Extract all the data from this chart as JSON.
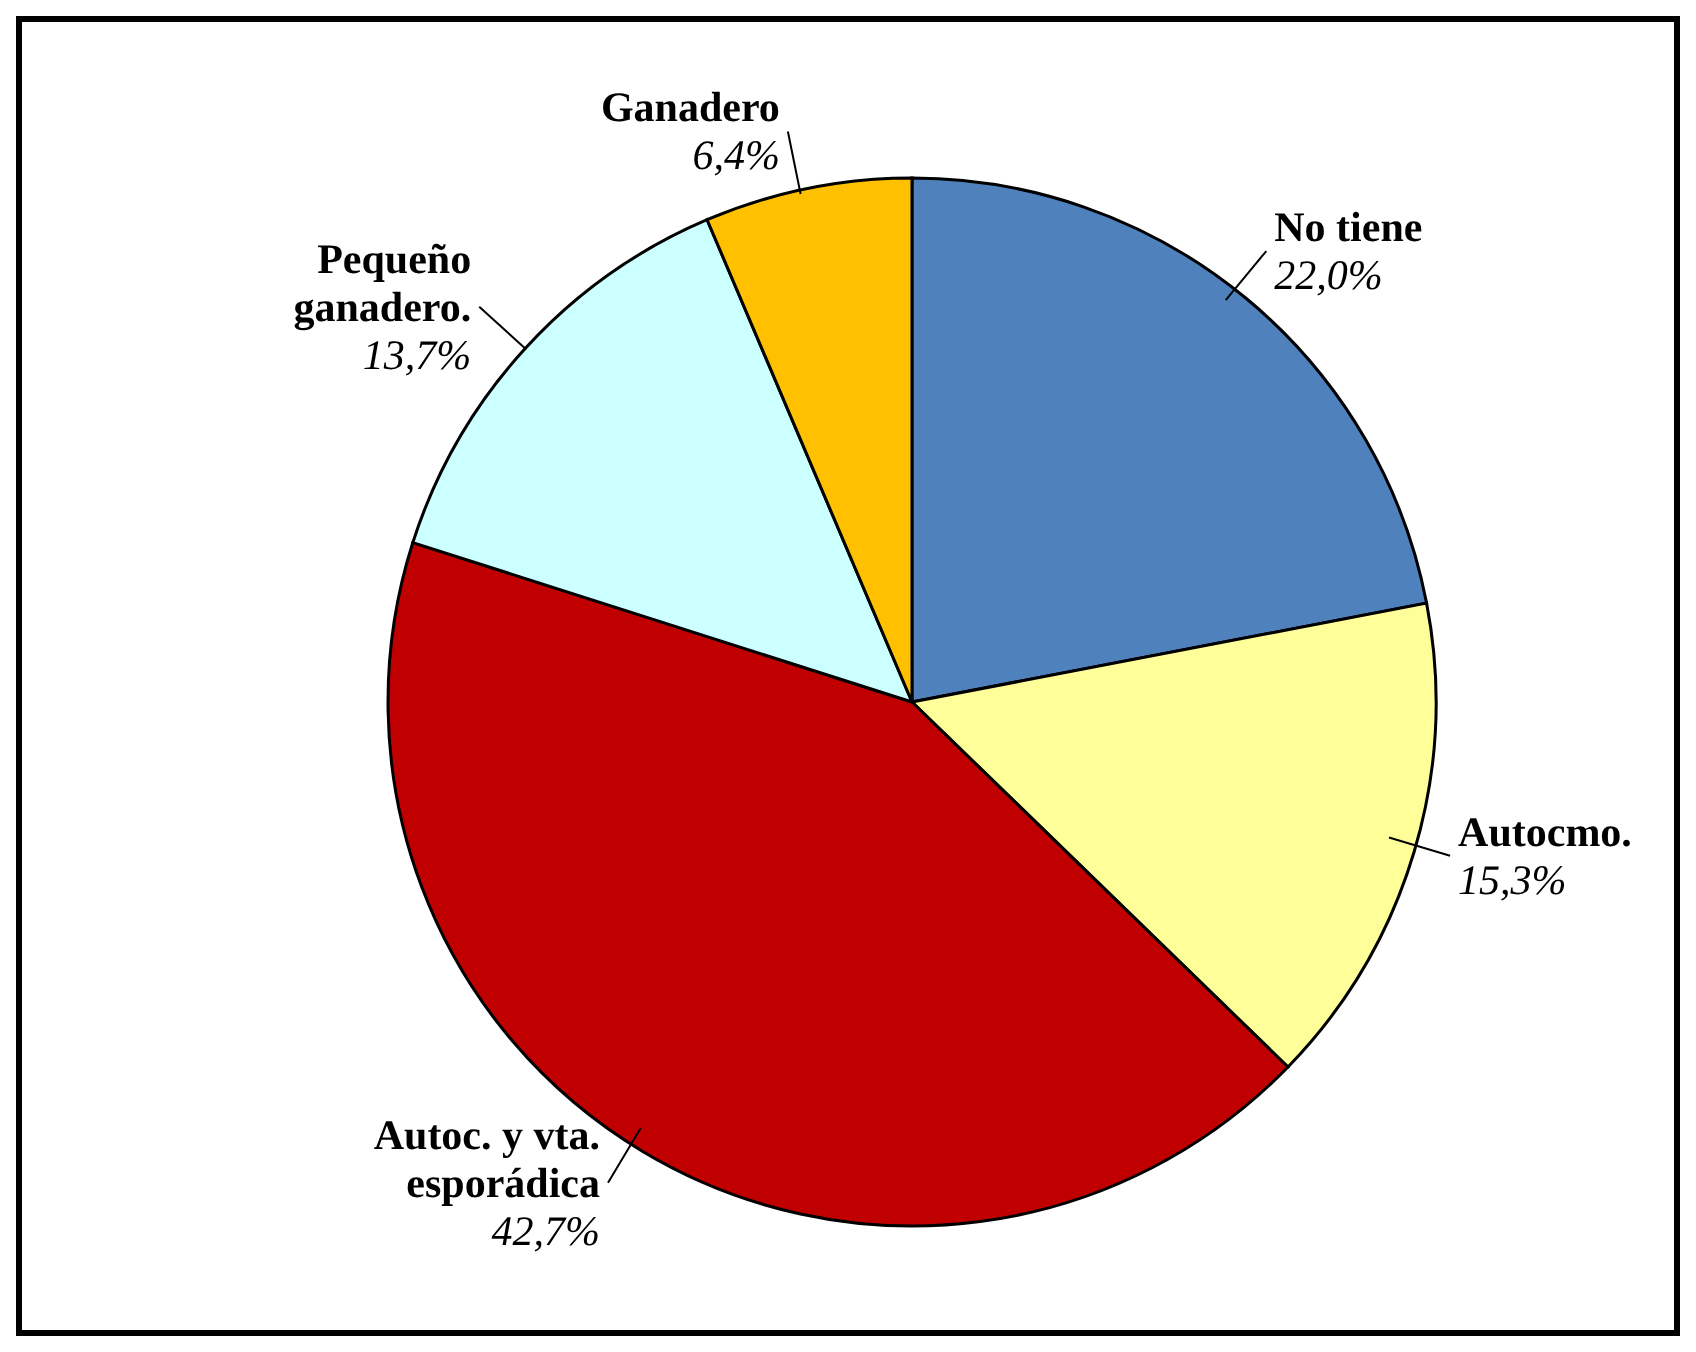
{
  "chart_data": {
    "type": "pie",
    "categories": [
      "No tiene",
      "Autocmo.",
      "Autoc. y vta. esporádica",
      "Pequeño ganadero.",
      "Ganadero"
    ],
    "values": [
      22.0,
      15.3,
      42.7,
      13.7,
      6.4
    ],
    "colors": [
      "#4f81bd",
      "#ffff99",
      "#c00000",
      "#ccffff",
      "#ffc000"
    ],
    "value_labels": [
      "22,0%",
      "15,3%",
      "42,7%",
      "13,7%",
      "6,4%"
    ]
  }
}
